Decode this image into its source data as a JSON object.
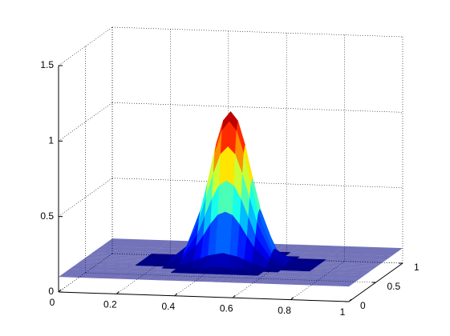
{
  "chart_data": {
    "type": "surface",
    "colormap": "jet",
    "grid": true,
    "x": [
      0,
      0.2,
      0.3,
      0.35,
      0.4,
      0.425,
      0.45,
      0.475,
      0.5,
      0.525,
      0.55,
      0.575,
      0.6,
      0.65,
      0.7,
      0.8,
      1
    ],
    "y": [
      0,
      0.2,
      0.3,
      0.35,
      0.4,
      0.425,
      0.45,
      0.475,
      0.5,
      0.525,
      0.55,
      0.575,
      0.6,
      0.65,
      0.7,
      0.8,
      1
    ],
    "z": [
      [
        0.1,
        0.1,
        0.1,
        0.1,
        0.1,
        0.1,
        0.1,
        0.1,
        0.1,
        0.1,
        0.1,
        0.1,
        0.1,
        0.1,
        0.1,
        0.1,
        0.1
      ],
      [
        0.1,
        0.1,
        0.1,
        0.1,
        0.1,
        0.1,
        0.1,
        0.1,
        0.1,
        0.1,
        0.1,
        0.1,
        0.1,
        0.1,
        0.1,
        0.1,
        0.1
      ],
      [
        0.1,
        0.1,
        0.1,
        0.1,
        0.11,
        0.11,
        0.11,
        0.12,
        0.12,
        0.12,
        0.11,
        0.11,
        0.11,
        0.1,
        0.1,
        0.1,
        0.1
      ],
      [
        0.1,
        0.1,
        0.1,
        0.11,
        0.14,
        0.16,
        0.18,
        0.19,
        0.2,
        0.19,
        0.18,
        0.16,
        0.14,
        0.11,
        0.1,
        0.1,
        0.1
      ],
      [
        0.1,
        0.1,
        0.11,
        0.14,
        0.23,
        0.3,
        0.38,
        0.44,
        0.46,
        0.44,
        0.38,
        0.3,
        0.23,
        0.14,
        0.11,
        0.1,
        0.1
      ],
      [
        0.1,
        0.1,
        0.11,
        0.16,
        0.3,
        0.42,
        0.54,
        0.63,
        0.66,
        0.63,
        0.54,
        0.42,
        0.3,
        0.16,
        0.11,
        0.1,
        0.1
      ],
      [
        0.1,
        0.1,
        0.11,
        0.18,
        0.38,
        0.54,
        0.7,
        0.83,
        0.88,
        0.83,
        0.7,
        0.54,
        0.38,
        0.18,
        0.11,
        0.1,
        0.1
      ],
      [
        0.1,
        0.1,
        0.12,
        0.19,
        0.44,
        0.63,
        0.83,
        0.98,
        1.04,
        0.98,
        0.83,
        0.63,
        0.44,
        0.19,
        0.12,
        0.1,
        0.1
      ],
      [
        0.1,
        0.1,
        0.12,
        0.2,
        0.46,
        0.66,
        0.88,
        1.04,
        1.1,
        1.04,
        0.88,
        0.66,
        0.46,
        0.2,
        0.12,
        0.1,
        0.1
      ],
      [
        0.1,
        0.1,
        0.12,
        0.19,
        0.44,
        0.63,
        0.83,
        0.98,
        1.04,
        0.98,
        0.83,
        0.63,
        0.44,
        0.19,
        0.12,
        0.1,
        0.1
      ],
      [
        0.1,
        0.1,
        0.11,
        0.18,
        0.38,
        0.54,
        0.7,
        0.83,
        0.88,
        0.83,
        0.7,
        0.54,
        0.38,
        0.18,
        0.11,
        0.1,
        0.1
      ],
      [
        0.1,
        0.1,
        0.11,
        0.16,
        0.3,
        0.42,
        0.54,
        0.63,
        0.66,
        0.63,
        0.54,
        0.42,
        0.3,
        0.16,
        0.11,
        0.1,
        0.1
      ],
      [
        0.1,
        0.1,
        0.11,
        0.14,
        0.23,
        0.3,
        0.38,
        0.44,
        0.46,
        0.44,
        0.38,
        0.3,
        0.23,
        0.14,
        0.11,
        0.1,
        0.1
      ],
      [
        0.1,
        0.1,
        0.1,
        0.11,
        0.14,
        0.16,
        0.18,
        0.19,
        0.2,
        0.19,
        0.18,
        0.16,
        0.14,
        0.11,
        0.1,
        0.1,
        0.1
      ],
      [
        0.1,
        0.1,
        0.1,
        0.1,
        0.11,
        0.11,
        0.11,
        0.12,
        0.12,
        0.12,
        0.11,
        0.11,
        0.11,
        0.1,
        0.1,
        0.1,
        0.1
      ],
      [
        0.1,
        0.1,
        0.1,
        0.1,
        0.1,
        0.1,
        0.1,
        0.1,
        0.1,
        0.1,
        0.1,
        0.1,
        0.1,
        0.1,
        0.1,
        0.1,
        0.1
      ],
      [
        0.1,
        0.1,
        0.1,
        0.1,
        0.1,
        0.1,
        0.1,
        0.1,
        0.1,
        0.1,
        0.1,
        0.1,
        0.1,
        0.1,
        0.1,
        0.1,
        0.1
      ]
    ],
    "xlim": [
      0,
      1
    ],
    "ylim": [
      0,
      1
    ],
    "zlim": [
      0,
      1.5
    ],
    "xticks": [
      0,
      0.2,
      0.4,
      0.6,
      0.8,
      1
    ],
    "yticks": [
      0,
      0.5,
      1
    ],
    "zticks": [
      0,
      0.5,
      1,
      1.5
    ]
  }
}
